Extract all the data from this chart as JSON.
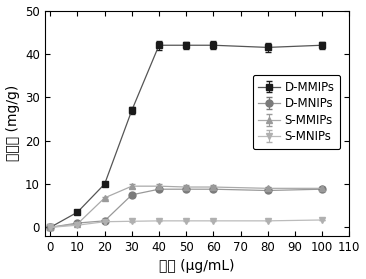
{
  "x": [
    0,
    10,
    20,
    30,
    40,
    50,
    60,
    80,
    100
  ],
  "D_MMIPs": [
    0,
    3.5,
    10,
    27,
    42,
    42,
    42,
    41.5,
    42
  ],
  "D_MNIPs": [
    0,
    1.0,
    1.5,
    7.5,
    8.8,
    8.8,
    8.8,
    8.5,
    8.8
  ],
  "S_MMIPs": [
    0,
    0.8,
    6.8,
    9.5,
    9.5,
    9.3,
    9.3,
    9.0,
    9.0
  ],
  "S_MNIPs": [
    0,
    0.5,
    1.3,
    1.4,
    1.5,
    1.5,
    1.5,
    1.5,
    1.7
  ],
  "D_MMIPs_err": [
    0,
    0.3,
    0.4,
    0.8,
    1.0,
    0.8,
    0.9,
    1.0,
    0.8
  ],
  "D_MNIPs_err": [
    0,
    0.1,
    0.15,
    0.4,
    0.4,
    0.4,
    0.4,
    0.4,
    0.4
  ],
  "S_MMIPs_err": [
    0,
    0.1,
    0.3,
    0.4,
    0.4,
    0.4,
    0.4,
    0.4,
    0.4
  ],
  "S_MNIPs_err": [
    0,
    0.05,
    0.1,
    0.1,
    0.1,
    0.1,
    0.1,
    0.1,
    0.1
  ],
  "xlabel": "浓度 (μg/mL)",
  "ylabel": "吸附量 (mg/g)",
  "xlim": [
    -2,
    110
  ],
  "ylim": [
    -2,
    50
  ],
  "xticks": [
    0,
    10,
    20,
    30,
    40,
    50,
    60,
    70,
    80,
    90,
    100,
    110
  ],
  "yticks": [
    0,
    10,
    20,
    30,
    40,
    50
  ],
  "legend_labels": [
    "D-MMIPs",
    "D-MNIPs",
    "S-MMIPs",
    "S-MNIPs"
  ],
  "marker_colors": [
    "#1a1a1a",
    "#7a7a7a",
    "#9a9a9a",
    "#b0b0b0"
  ],
  "line_colors": [
    "#555555",
    "#999999",
    "#aaaaaa",
    "#bbbbbb"
  ],
  "markers": [
    "s",
    "o",
    "^",
    "v"
  ],
  "markersizes": [
    5,
    5,
    5,
    5
  ],
  "background_color": "#ffffff",
  "legend_fontsize": 8.5,
  "axis_fontsize": 10,
  "tick_fontsize": 8.5
}
